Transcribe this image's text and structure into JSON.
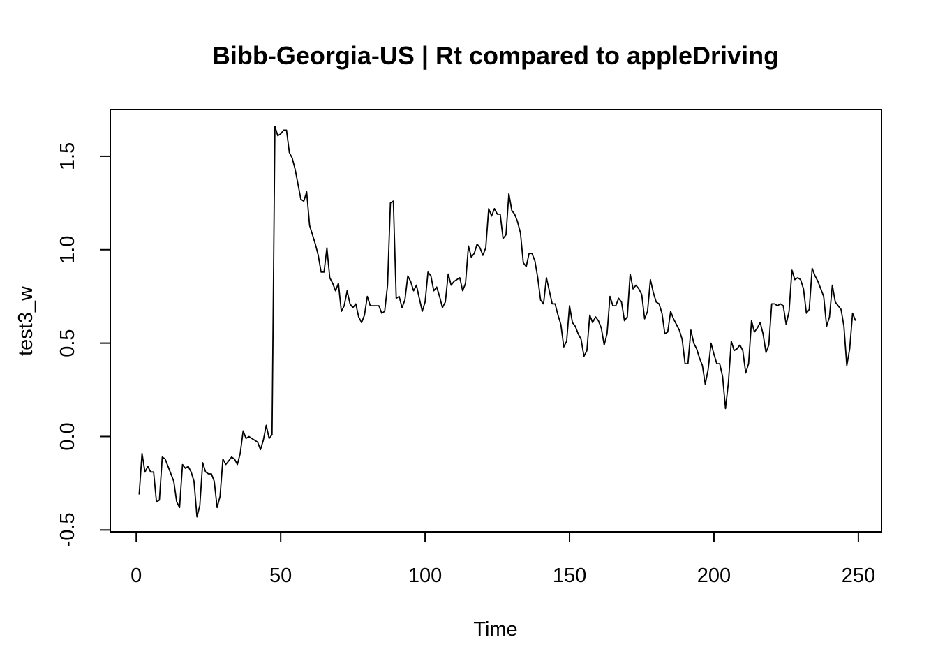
{
  "chart_data": {
    "type": "line",
    "title": "Bibb-Georgia-US | Rt compared to appleDriving",
    "xlabel": "Time",
    "ylabel": "test3_w",
    "xlim": [
      -9,
      258
    ],
    "ylim": [
      -0.51,
      1.75
    ],
    "xticks": [
      0,
      50,
      100,
      150,
      200,
      250
    ],
    "yticks": [
      -0.5,
      0.0,
      0.5,
      1.0,
      1.5
    ],
    "xtick_labels": [
      "0",
      "50",
      "100",
      "150",
      "200",
      "250"
    ],
    "ytick_labels": [
      "-0.5",
      "0.0",
      "0.5",
      "1.0",
      "1.5"
    ],
    "grid": false,
    "legend": "none",
    "line_color": "#000000",
    "series": [
      {
        "x_start": 1,
        "x_step": 1,
        "values": [
          -0.31,
          -0.09,
          -0.19,
          -0.16,
          -0.19,
          -0.19,
          -0.35,
          -0.34,
          -0.11,
          -0.12,
          -0.16,
          -0.2,
          -0.24,
          -0.35,
          -0.38,
          -0.15,
          -0.17,
          -0.16,
          -0.19,
          -0.24,
          -0.43,
          -0.37,
          -0.14,
          -0.19,
          -0.2,
          -0.2,
          -0.24,
          -0.38,
          -0.32,
          -0.12,
          -0.15,
          -0.13,
          -0.11,
          -0.12,
          -0.15,
          -0.09,
          0.03,
          -0.01,
          0.0,
          -0.01,
          -0.02,
          -0.03,
          -0.07,
          -0.02,
          0.06,
          -0.01,
          0.01,
          1.66,
          1.61,
          1.62,
          1.64,
          1.64,
          1.52,
          1.49,
          1.43,
          1.35,
          1.27,
          1.26,
          1.31,
          1.13,
          1.08,
          1.03,
          0.97,
          0.88,
          0.88,
          1.01,
          0.85,
          0.82,
          0.78,
          0.82,
          0.67,
          0.7,
          0.78,
          0.71,
          0.69,
          0.71,
          0.64,
          0.61,
          0.65,
          0.75,
          0.7,
          0.7,
          0.7,
          0.7,
          0.66,
          0.67,
          0.81,
          1.25,
          1.26,
          0.74,
          0.75,
          0.69,
          0.73,
          0.86,
          0.83,
          0.78,
          0.81,
          0.74,
          0.67,
          0.72,
          0.88,
          0.86,
          0.78,
          0.8,
          0.75,
          0.69,
          0.72,
          0.87,
          0.81,
          0.83,
          0.84,
          0.85,
          0.78,
          0.82,
          1.02,
          0.96,
          0.98,
          1.03,
          1.01,
          0.97,
          1.01,
          1.22,
          1.18,
          1.22,
          1.19,
          1.19,
          1.06,
          1.08,
          1.3,
          1.21,
          1.19,
          1.15,
          1.09,
          0.93,
          0.91,
          0.98,
          0.98,
          0.94,
          0.85,
          0.73,
          0.71,
          0.85,
          0.78,
          0.71,
          0.71,
          0.65,
          0.6,
          0.48,
          0.51,
          0.7,
          0.61,
          0.59,
          0.55,
          0.52,
          0.43,
          0.46,
          0.65,
          0.61,
          0.64,
          0.62,
          0.58,
          0.49,
          0.55,
          0.75,
          0.7,
          0.7,
          0.74,
          0.72,
          0.62,
          0.64,
          0.87,
          0.79,
          0.81,
          0.79,
          0.76,
          0.63,
          0.67,
          0.84,
          0.77,
          0.72,
          0.71,
          0.66,
          0.55,
          0.56,
          0.67,
          0.63,
          0.6,
          0.57,
          0.52,
          0.39,
          0.39,
          0.57,
          0.5,
          0.47,
          0.42,
          0.38,
          0.28,
          0.36,
          0.5,
          0.44,
          0.39,
          0.39,
          0.32,
          0.15,
          0.29,
          0.51,
          0.46,
          0.47,
          0.49,
          0.46,
          0.34,
          0.39,
          0.62,
          0.56,
          0.58,
          0.61,
          0.55,
          0.45,
          0.49,
          0.71,
          0.71,
          0.7,
          0.71,
          0.7,
          0.6,
          0.67,
          0.89,
          0.84,
          0.85,
          0.84,
          0.79,
          0.66,
          0.68,
          0.9,
          0.86,
          0.83,
          0.79,
          0.75,
          0.59,
          0.64,
          0.81,
          0.72,
          0.7,
          0.68,
          0.59,
          0.38,
          0.47,
          0.66,
          0.62
        ]
      }
    ]
  }
}
